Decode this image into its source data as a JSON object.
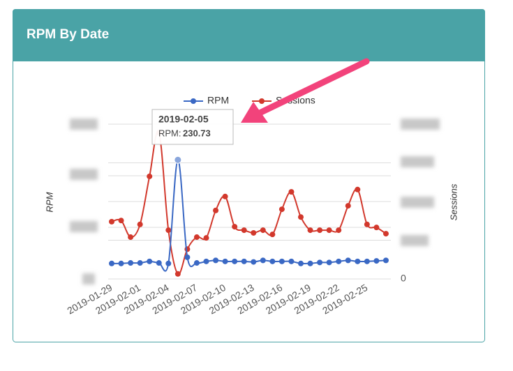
{
  "chart_data": {
    "type": "line",
    "title": "RPM By Date",
    "categories": [
      "2019-01-29",
      null,
      null,
      "2019-02-01",
      null,
      null,
      "2019-02-04",
      null,
      null,
      "2019-02-07",
      null,
      null,
      "2019-02-10",
      null,
      null,
      "2019-02-13",
      null,
      null,
      "2019-02-16",
      null,
      null,
      "2019-02-19",
      null,
      null,
      "2019-02-22",
      null,
      null,
      "2019-02-25",
      null,
      null
    ],
    "series": [
      {
        "name": "RPM",
        "color": "#3a68c4",
        "values": [
          30,
          30,
          31,
          31,
          34,
          31,
          30,
          230.73,
          42,
          31,
          34,
          36,
          34,
          34,
          34,
          33,
          36,
          34,
          34,
          34,
          30,
          30,
          32,
          32,
          34,
          36,
          34,
          34,
          35,
          36
        ]
      },
      {
        "name": "Sessions",
        "color": "#d2382c",
        "axis": "y2",
        "values": [
          1480,
          1510,
          1080,
          1410,
          2650,
          3780,
          1260,
          130,
          770,
          1080,
          1060,
          1770,
          2130,
          1350,
          1260,
          1190,
          1260,
          1150,
          1800,
          2250,
          1600,
          1260,
          1260,
          1260,
          1260,
          1890,
          2310,
          1410,
          1330,
          1170
        ]
      }
    ],
    "ylabel": "RPM",
    "y2label": "Sessions",
    "ylim": [
      0,
      300
    ],
    "yticks": [
      0,
      100,
      200,
      300
    ],
    "y2lim": [
      0,
      4000
    ],
    "y2ticks": [
      0,
      1000,
      2000,
      3000,
      4000
    ],
    "grid": true,
    "legend": "top",
    "tooltip": {
      "title": "2019-02-05",
      "label": "RPM:",
      "value": 230.73,
      "index": 7
    }
  }
}
